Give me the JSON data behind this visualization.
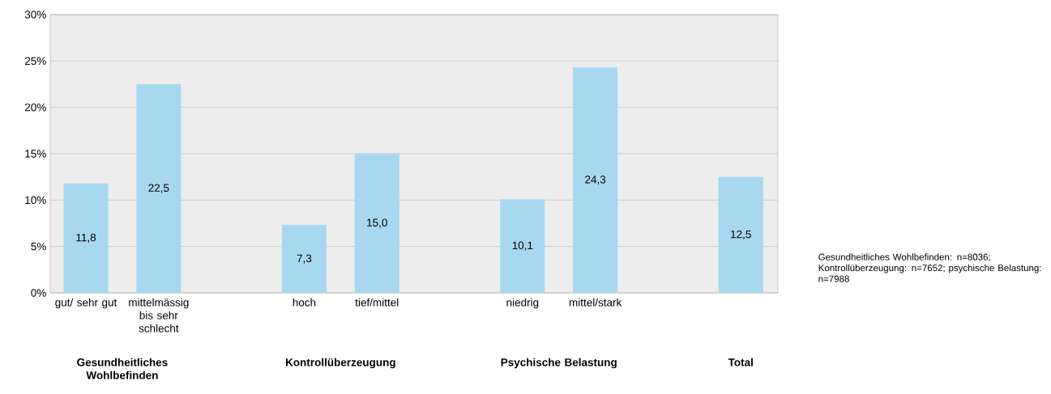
{
  "chart_data": {
    "type": "bar",
    "categories": [
      "gut/ sehr gut",
      "mittelmässig bis sehr schlecht",
      null,
      "hoch",
      "tief/mittel",
      null,
      "niedrig",
      "mittel/stark",
      null,
      null
    ],
    "values": [
      11.8,
      22.5,
      null,
      7.3,
      15.0,
      null,
      10.1,
      24.3,
      null,
      12.5
    ],
    "value_labels": [
      "11,8",
      "22,5",
      null,
      "7,3",
      "15,0",
      null,
      "10,1",
      "24,3",
      null,
      "12,5"
    ],
    "color": "#a7d8ef",
    "ylim": [
      0,
      30
    ],
    "yticks": [
      {
        "value": 0,
        "label": "0%"
      },
      {
        "value": 5,
        "label": "5%"
      },
      {
        "value": 10,
        "label": "10%"
      },
      {
        "value": 15,
        "label": "15%"
      },
      {
        "value": 20,
        "label": "20%"
      },
      {
        "value": 25,
        "label": "25%"
      },
      {
        "value": 30,
        "label": "30%"
      }
    ],
    "grid": "y",
    "annotations": [
      "Gesundheitliches Wohlbefinden",
      "Kontrollüberzeugung",
      "Psychische Belastung",
      "Total",
      "Gesundheitliches Wohlbefinden: n=8036; Kontrollüberzeugung: n=7652; psychische Belastung: n=7988"
    ]
  }
}
